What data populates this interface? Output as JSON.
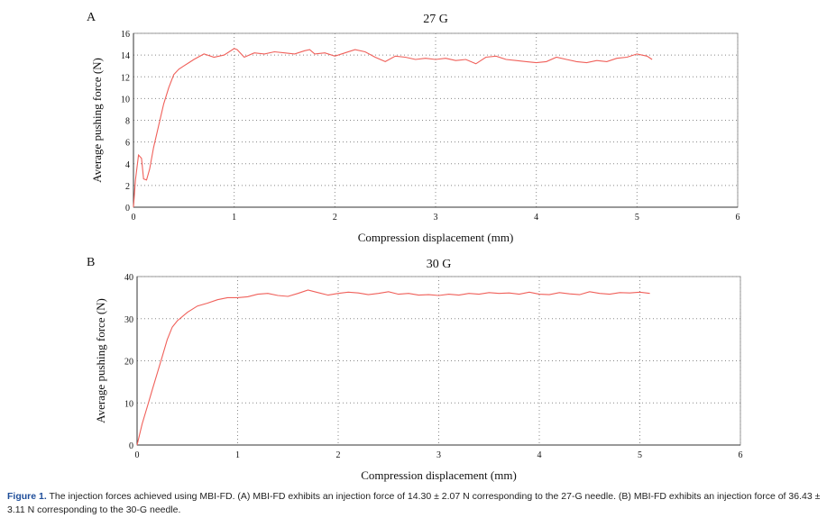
{
  "chart_data": [
    {
      "type": "line",
      "panel_label": "A",
      "title": "27 G",
      "x_label": "Compression displacement (mm)",
      "y_label": "Average pushing force (N)",
      "x": [
        0,
        0.02,
        0.05,
        0.08,
        0.1,
        0.13,
        0.16,
        0.2,
        0.25,
        0.3,
        0.35,
        0.4,
        0.45,
        0.5,
        0.55,
        0.6,
        0.7,
        0.8,
        0.9,
        1.0,
        1.03,
        1.1,
        1.2,
        1.3,
        1.4,
        1.5,
        1.6,
        1.7,
        1.75,
        1.8,
        1.9,
        2.0,
        2.1,
        2.2,
        2.3,
        2.4,
        2.5,
        2.6,
        2.7,
        2.8,
        2.9,
        3.0,
        3.1,
        3.2,
        3.3,
        3.4,
        3.5,
        3.6,
        3.7,
        3.8,
        3.9,
        4.0,
        4.1,
        4.2,
        4.3,
        4.4,
        4.5,
        4.6,
        4.7,
        4.8,
        4.9,
        5.0,
        5.1,
        5.15
      ],
      "values": [
        0,
        2.5,
        4.8,
        4.5,
        2.6,
        2.5,
        3.5,
        5.5,
        7.5,
        9.5,
        11,
        12.2,
        12.7,
        13,
        13.3,
        13.6,
        14.1,
        13.8,
        14,
        14.6,
        14.5,
        13.8,
        14.2,
        14.1,
        14.3,
        14.2,
        14.1,
        14.4,
        14.5,
        14.1,
        14.2,
        13.9,
        14.2,
        14.5,
        14.3,
        13.8,
        13.4,
        13.9,
        13.8,
        13.6,
        13.7,
        13.6,
        13.7,
        13.5,
        13.6,
        13.2,
        13.8,
        13.9,
        13.6,
        13.5,
        13.4,
        13.3,
        13.4,
        13.8,
        13.6,
        13.4,
        13.3,
        13.5,
        13.4,
        13.7,
        13.8,
        14.1,
        13.9,
        13.6
      ],
      "color": "#f0605a",
      "xlim": [
        0,
        6
      ],
      "xticks": [
        0,
        1,
        2,
        3,
        4,
        5,
        6
      ],
      "ylim": [
        0,
        16
      ],
      "yticks": [
        0,
        2,
        4,
        6,
        8,
        10,
        12,
        14,
        16
      ],
      "grid": true
    },
    {
      "type": "line",
      "panel_label": "B",
      "title": "30 G",
      "x_label": "Compression displacement (mm)",
      "y_label": "Average pushing force (N)",
      "x": [
        0,
        0.05,
        0.1,
        0.15,
        0.2,
        0.25,
        0.3,
        0.35,
        0.4,
        0.5,
        0.6,
        0.7,
        0.8,
        0.9,
        1.0,
        1.1,
        1.2,
        1.3,
        1.4,
        1.5,
        1.6,
        1.7,
        1.8,
        1.9,
        2.0,
        2.1,
        2.2,
        2.3,
        2.4,
        2.5,
        2.6,
        2.7,
        2.8,
        2.9,
        3.0,
        3.1,
        3.2,
        3.3,
        3.4,
        3.5,
        3.6,
        3.7,
        3.8,
        3.9,
        4.0,
        4.1,
        4.2,
        4.3,
        4.4,
        4.5,
        4.6,
        4.7,
        4.8,
        4.9,
        5.0,
        5.1
      ],
      "values": [
        0,
        5,
        9,
        13,
        17,
        21,
        25,
        28,
        29.5,
        31.5,
        33,
        33.7,
        34.5,
        35,
        35,
        35.2,
        35.8,
        36,
        35.5,
        35.3,
        36,
        36.8,
        36.2,
        35.6,
        36,
        36.3,
        36.1,
        35.7,
        36,
        36.4,
        35.8,
        36,
        35.6,
        35.7,
        35.5,
        35.8,
        35.6,
        36,
        35.8,
        36.2,
        36,
        36.1,
        35.8,
        36.3,
        35.8,
        35.7,
        36.2,
        35.9,
        35.7,
        36.4,
        36,
        35.8,
        36.2,
        36.1,
        36.3,
        36
      ],
      "color": "#f0605a",
      "xlim": [
        0,
        6
      ],
      "xticks": [
        0,
        1,
        2,
        3,
        4,
        5,
        6
      ],
      "ylim": [
        0,
        40
      ],
      "yticks": [
        0,
        10,
        20,
        30,
        40
      ],
      "grid": true
    }
  ],
  "caption": {
    "label": "Figure 1.",
    "text": "The injection forces achieved using MBI-FD. (A) MBI-FD exhibits an injection force of 14.30 ± 2.07 N corresponding to the 27-G needle. (B) MBI-FD exhibits an injection force of 36.43 ± 3.11 N corresponding to the 30-G needle."
  }
}
